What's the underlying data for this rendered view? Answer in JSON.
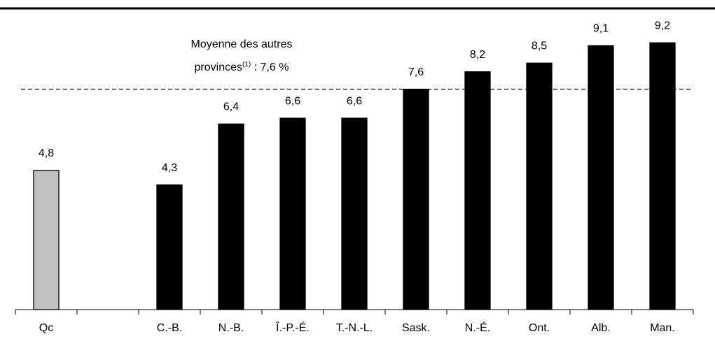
{
  "chart_data": {
    "type": "bar",
    "categories": [
      "Qc",
      null,
      "C.-B.",
      "N.-B.",
      "Î.-P.-É.",
      "T.-N.-L.",
      "Sask.",
      "N.-É.",
      "Ont.",
      "Alb.",
      "Man."
    ],
    "values": [
      4.8,
      null,
      4.3,
      6.4,
      6.6,
      6.6,
      7.6,
      8.2,
      8.5,
      9.1,
      9.2
    ],
    "value_labels": [
      "4,8",
      null,
      "4,3",
      "6,4",
      "6,6",
      "6,6",
      "7,6",
      "8,2",
      "8,5",
      "9,1",
      "9,2"
    ],
    "colors": [
      "#c0c0c0",
      null,
      "#000000",
      "#000000",
      "#000000",
      "#000000",
      "#000000",
      "#000000",
      "#000000",
      "#000000",
      "#000000"
    ],
    "ylim": [
      0,
      10
    ],
    "reference_line": {
      "value": 7.6,
      "label_lines": [
        "Moyenne des autres",
        "provinces"
      ],
      "footnote": "(1)",
      "label_end": " : 7,6 %"
    }
  }
}
